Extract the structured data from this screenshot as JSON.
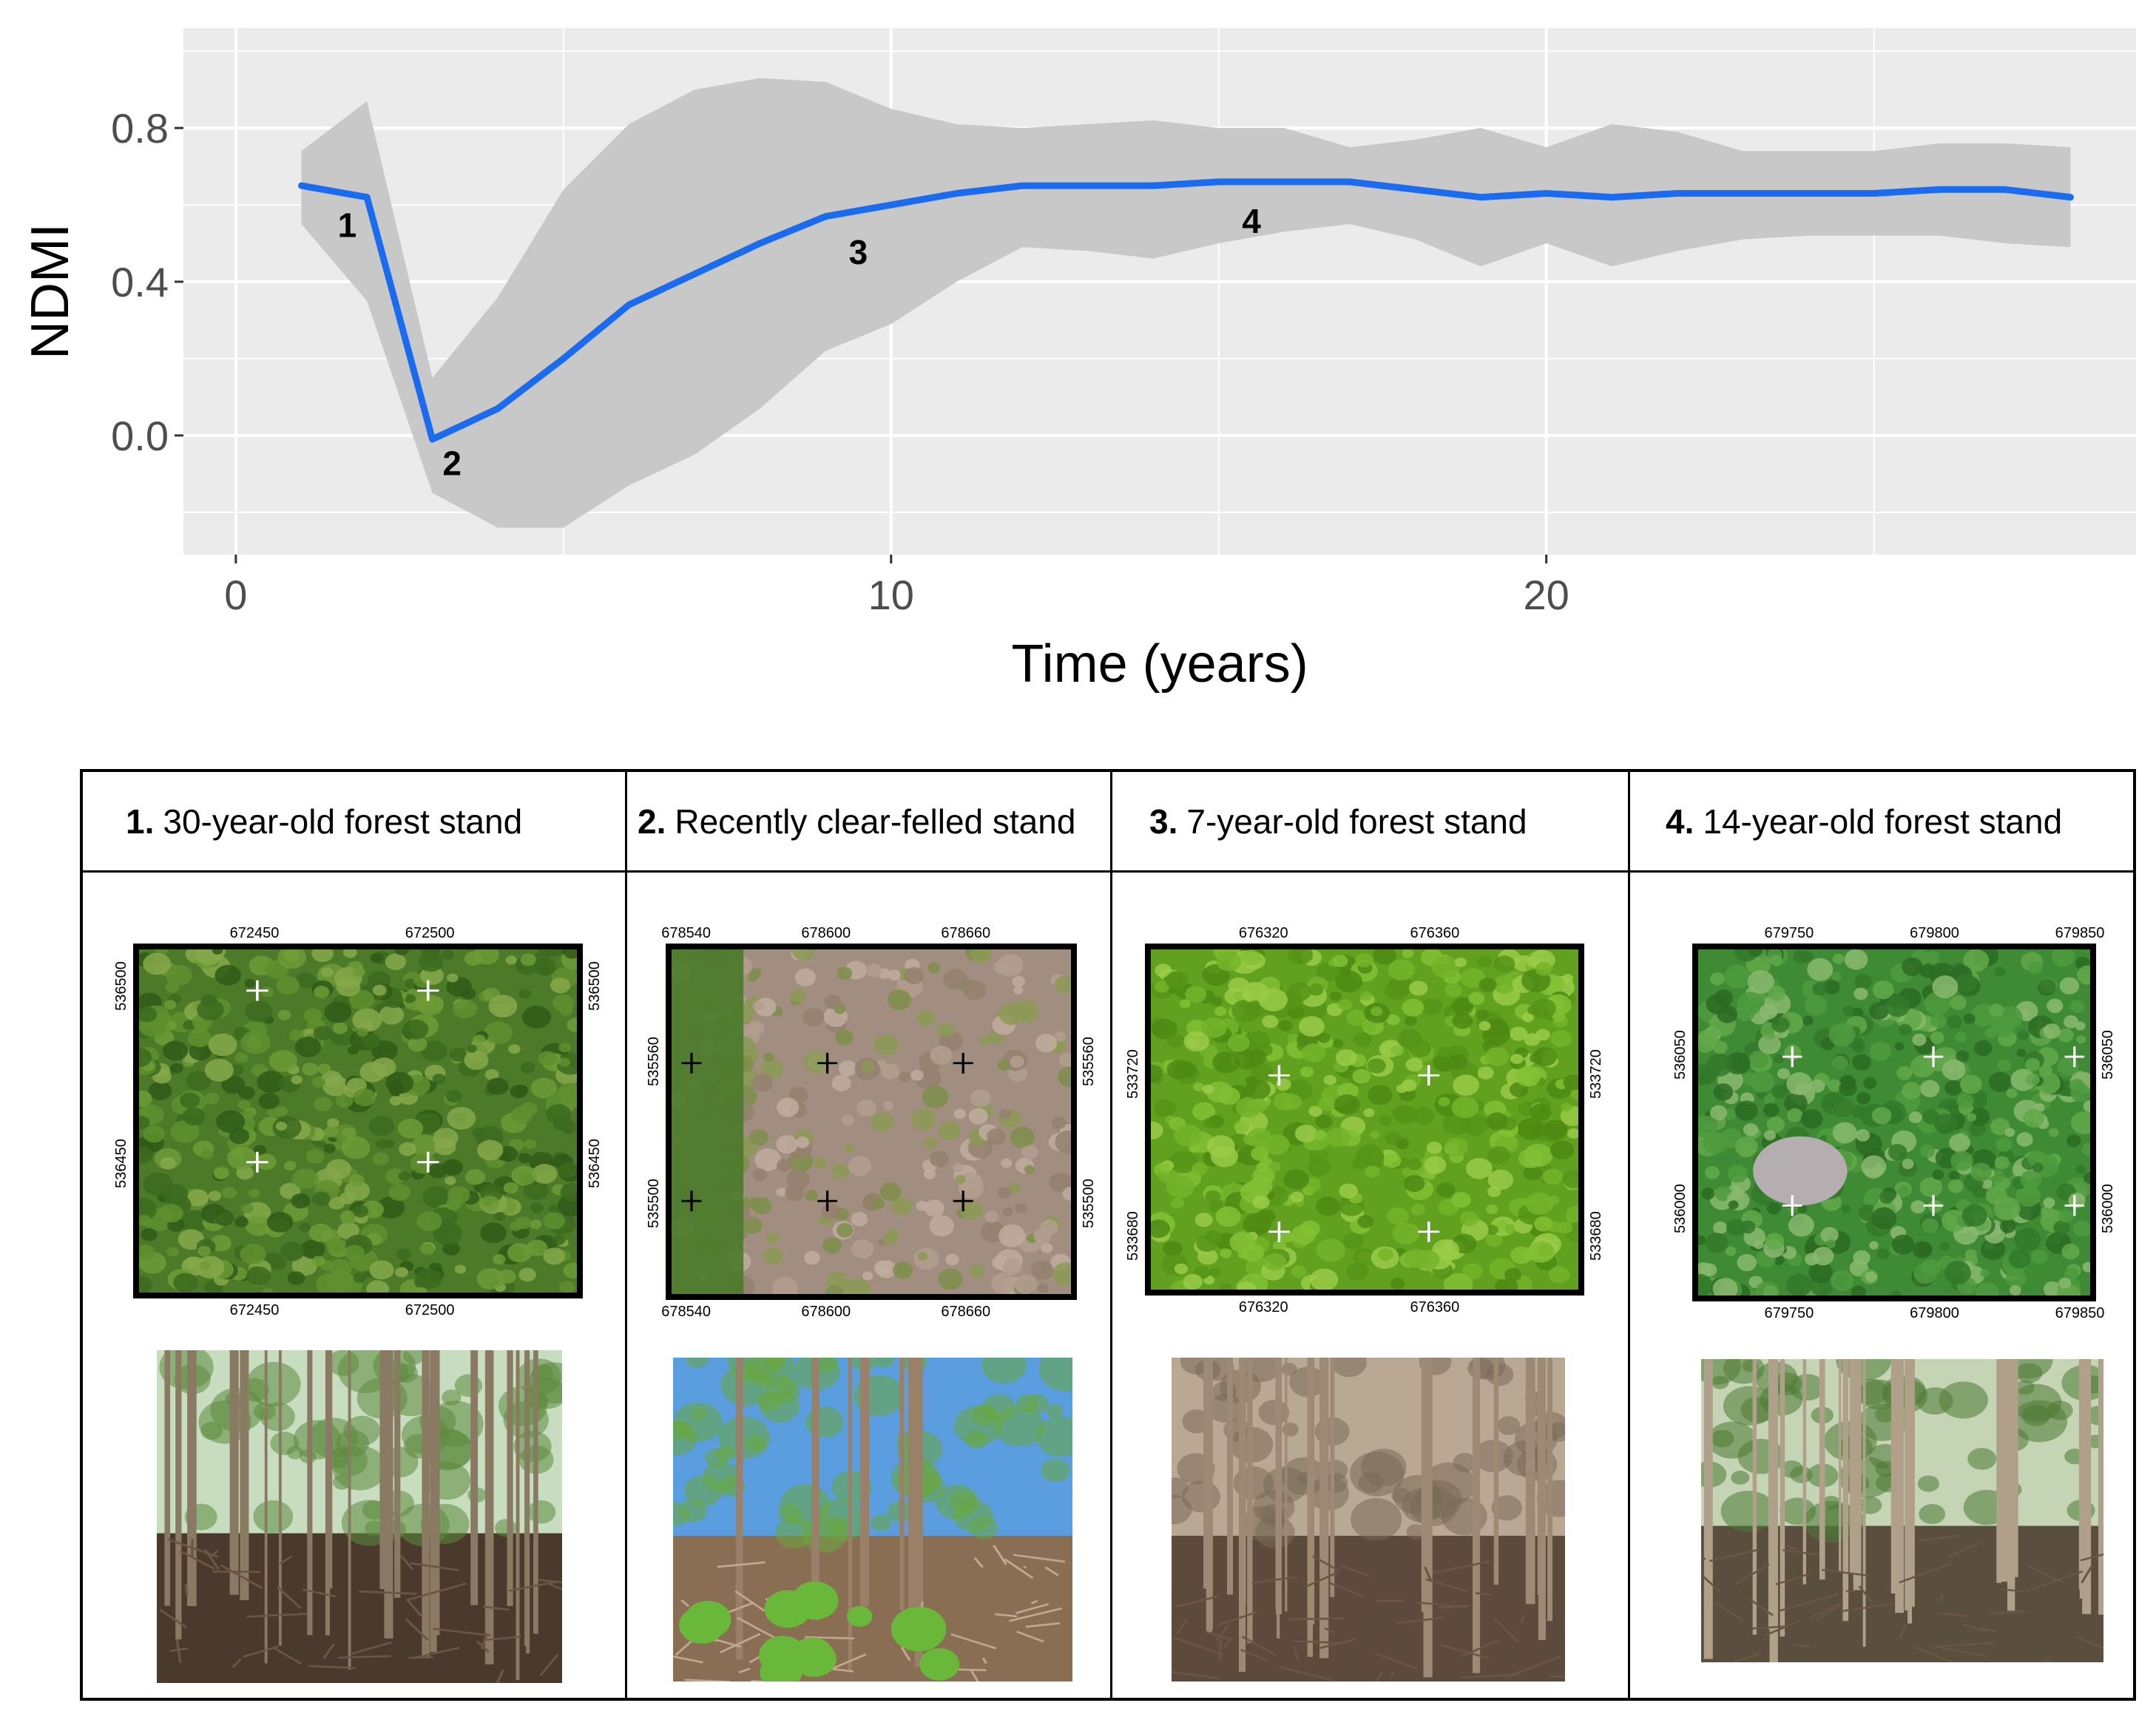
{
  "chart_data": {
    "type": "line",
    "xlabel": "Time (years)",
    "ylabel": "NDMI",
    "xlim": [
      -0.8,
      29
    ],
    "ylim": [
      -0.31,
      1.06
    ],
    "x_ticks": [
      0,
      10,
      20
    ],
    "y_ticks": [
      0.0,
      0.4,
      0.8
    ],
    "y_tick_labels": [
      "0.0",
      "0.4",
      "0.8"
    ],
    "grid": true,
    "series": [
      {
        "color": "#1a6bf0",
        "x": [
          1,
          2,
          3,
          4,
          5,
          6,
          7,
          8,
          9,
          10,
          11,
          12,
          13,
          14,
          15,
          16,
          17,
          18,
          19,
          20,
          21,
          22,
          23,
          24,
          25,
          26,
          27,
          28
        ],
        "y": [
          0.65,
          0.62,
          -0.01,
          0.07,
          0.2,
          0.34,
          0.42,
          0.5,
          0.57,
          0.6,
          0.63,
          0.65,
          0.65,
          0.65,
          0.66,
          0.66,
          0.66,
          0.64,
          0.62,
          0.63,
          0.62,
          0.63,
          0.63,
          0.63,
          0.63,
          0.64,
          0.64,
          0.62
        ],
        "ribbon_lower": [
          0.55,
          0.35,
          -0.15,
          -0.24,
          -0.24,
          -0.13,
          -0.05,
          0.07,
          0.22,
          0.29,
          0.4,
          0.49,
          0.48,
          0.46,
          0.5,
          0.53,
          0.55,
          0.51,
          0.44,
          0.5,
          0.44,
          0.48,
          0.51,
          0.52,
          0.52,
          0.52,
          0.5,
          0.49
        ],
        "ribbon_upper": [
          0.74,
          0.87,
          0.15,
          0.36,
          0.64,
          0.81,
          0.9,
          0.93,
          0.92,
          0.85,
          0.81,
          0.8,
          0.81,
          0.82,
          0.8,
          0.8,
          0.75,
          0.77,
          0.8,
          0.75,
          0.81,
          0.79,
          0.74,
          0.74,
          0.74,
          0.76,
          0.76,
          0.75
        ]
      }
    ],
    "point_labels": [
      {
        "text": "1",
        "x": 1.7,
        "y": 0.54
      },
      {
        "text": "2",
        "x": 3.3,
        "y": -0.08
      },
      {
        "text": "3",
        "x": 9.5,
        "y": 0.47
      },
      {
        "text": "4",
        "x": 15.5,
        "y": 0.55
      }
    ],
    "colors": {
      "panel_bg": "#ebebeb",
      "grid": "#ffffff",
      "ribbon": "#c8c8c8"
    }
  },
  "stands": [
    {
      "number": "1.",
      "title": "30-year-old forest stand",
      "map_top_ticks": [
        "672450",
        "672500"
      ],
      "map_bottom_ticks": [
        "672450",
        "672500"
      ],
      "map_left_ticks": [
        "536500",
        "536450"
      ],
      "map_right_ticks": [
        "536500",
        "536450"
      ],
      "map_type": "dense-canopy",
      "cross_color": "#ffffff"
    },
    {
      "number": "2.",
      "title": "Recently clear-felled stand",
      "map_top_ticks": [
        "678540",
        "678600",
        "678660"
      ],
      "map_bottom_ticks": [
        "678540",
        "678600",
        "678660"
      ],
      "map_left_ticks": [
        "535560",
        "535500"
      ],
      "map_right_ticks": [
        "535560",
        "535500"
      ],
      "map_type": "clear-felled",
      "cross_color": "#000000"
    },
    {
      "number": "3.",
      "title": "7-year-old forest stand",
      "map_top_ticks": [
        "676320",
        "676360"
      ],
      "map_bottom_ticks": [
        "676320",
        "676360"
      ],
      "map_left_ticks": [
        "533720",
        "533680"
      ],
      "map_right_ticks": [
        "533720",
        "533680"
      ],
      "map_type": "young-canopy",
      "cross_color": "#ffffff"
    },
    {
      "number": "4.",
      "title": "14-year-old forest stand",
      "map_top_ticks": [
        "679750",
        "679800",
        "679850"
      ],
      "map_bottom_ticks": [
        "679750",
        "679800",
        "679850"
      ],
      "map_left_ticks": [
        "536050",
        "536000"
      ],
      "map_right_ticks": [
        "536050",
        "536000"
      ],
      "map_type": "canopy-with-gap",
      "cross_color": "#ffffff"
    }
  ]
}
